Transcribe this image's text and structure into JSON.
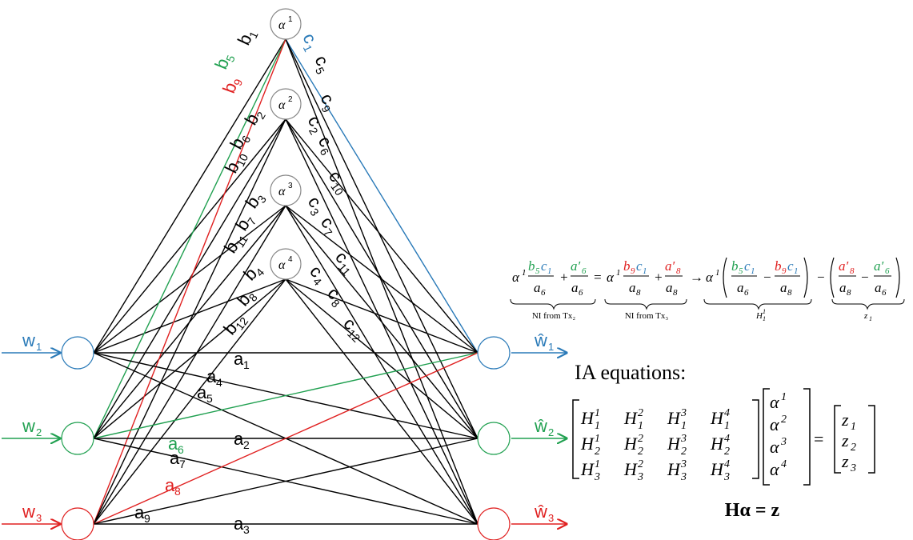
{
  "colors": {
    "black": "#000000",
    "blue": "#2a7ab8",
    "green": "#20a050",
    "red": "#e02020",
    "node_stroke": "#888888"
  },
  "inputs": [
    {
      "base": "w",
      "sub": "1",
      "color": "#2a7ab8"
    },
    {
      "base": "w",
      "sub": "2",
      "color": "#20a050"
    },
    {
      "base": "w",
      "sub": "3",
      "color": "#e02020"
    }
  ],
  "outputs": [
    {
      "base": "ŵ",
      "sub": "1",
      "color": "#2a7ab8"
    },
    {
      "base": "ŵ",
      "sub": "2",
      "color": "#20a050"
    },
    {
      "base": "ŵ",
      "sub": "3",
      "color": "#e02020"
    }
  ],
  "relays": [
    {
      "base": "α",
      "sup": "1"
    },
    {
      "base": "α",
      "sup": "2"
    },
    {
      "base": "α",
      "sup": "3"
    },
    {
      "base": "α",
      "sup": "4"
    }
  ],
  "direct_labels": [
    {
      "base": "a",
      "sub": "1",
      "color": "#000000"
    },
    {
      "base": "a",
      "sub": "4",
      "color": "#000000"
    },
    {
      "base": "a",
      "sub": "5",
      "color": "#000000"
    },
    {
      "base": "a",
      "sub": "6",
      "color": "#20a050"
    },
    {
      "base": "a",
      "sub": "2",
      "color": "#000000"
    },
    {
      "base": "a",
      "sub": "7",
      "color": "#000000"
    },
    {
      "base": "a",
      "sub": "8",
      "color": "#e02020"
    },
    {
      "base": "a",
      "sub": "9",
      "color": "#000000"
    },
    {
      "base": "a",
      "sub": "3",
      "color": "#000000"
    }
  ],
  "b_labels": [
    {
      "base": "b",
      "sub": "1",
      "color": "#000000"
    },
    {
      "base": "b",
      "sub": "5",
      "color": "#20a050"
    },
    {
      "base": "b",
      "sub": "9",
      "color": "#e02020"
    },
    {
      "base": "b",
      "sub": "2",
      "color": "#000000"
    },
    {
      "base": "b",
      "sub": "6",
      "color": "#000000"
    },
    {
      "base": "b",
      "sub": "10",
      "color": "#000000"
    },
    {
      "base": "b",
      "sub": "3",
      "color": "#000000"
    },
    {
      "base": "b",
      "sub": "7",
      "color": "#000000"
    },
    {
      "base": "b",
      "sub": "11",
      "color": "#000000"
    },
    {
      "base": "b",
      "sub": "4",
      "color": "#000000"
    },
    {
      "base": "b",
      "sub": "8",
      "color": "#000000"
    },
    {
      "base": "b",
      "sub": "12",
      "color": "#000000"
    }
  ],
  "c_labels": [
    {
      "base": "c",
      "sub": "1",
      "color": "#2a7ab8"
    },
    {
      "base": "c",
      "sub": "5",
      "color": "#000000"
    },
    {
      "base": "c",
      "sub": "9",
      "color": "#000000"
    },
    {
      "base": "c",
      "sub": "2",
      "color": "#000000"
    },
    {
      "base": "c",
      "sub": "6",
      "color": "#000000"
    },
    {
      "base": "c",
      "sub": "10",
      "color": "#000000"
    },
    {
      "base": "c",
      "sub": "3",
      "color": "#000000"
    },
    {
      "base": "c",
      "sub": "7",
      "color": "#000000"
    },
    {
      "base": "c",
      "sub": "11",
      "color": "#000000"
    },
    {
      "base": "c",
      "sub": "4",
      "color": "#000000"
    },
    {
      "base": "c",
      "sub": "8",
      "color": "#000000"
    },
    {
      "base": "c",
      "sub": "12",
      "color": "#000000"
    }
  ],
  "equation1": {
    "alpha": "α",
    "alpha_sup": "1",
    "plus": "+",
    "minus": "−",
    "equals": "=",
    "arrow": "→",
    "b5c1": "b₅c₁",
    "a6": "a₆",
    "a6p": "a′₆",
    "b9c1": "b₉c₁",
    "a8": "a₈",
    "a8p": "a′₈",
    "brace1": "NI from Tx₂",
    "brace2": "NI from Tx₃",
    "brace3": "H",
    "brace3_sub": "1",
    "brace3_sup": "1",
    "brace4": "z",
    "brace4_sub": "1"
  },
  "ia": {
    "title": "IA equations:",
    "H": "H",
    "alpha": "α",
    "z": "z",
    "equals": "=",
    "compact": "Hα = z"
  }
}
